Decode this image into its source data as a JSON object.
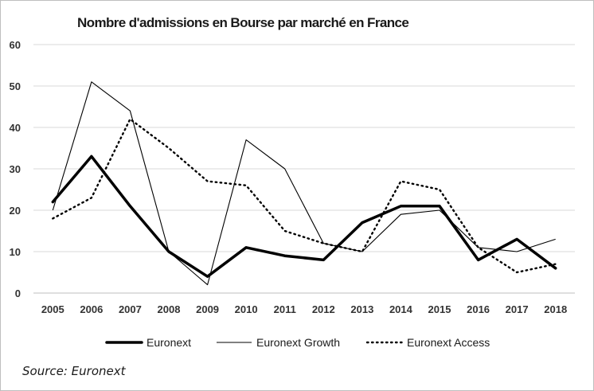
{
  "chart_data": {
    "type": "line",
    "title": "Nombre d'admissions en Bourse par marché en France",
    "xlabel": "",
    "ylabel": "",
    "x": [
      "2005",
      "2006",
      "2007",
      "2008",
      "2009",
      "2010",
      "2011",
      "2012",
      "2013",
      "2014",
      "2015",
      "2016",
      "2017",
      "2018"
    ],
    "ylim": [
      0,
      60
    ],
    "yticks": [
      0,
      10,
      20,
      30,
      40,
      50,
      60
    ],
    "grid": true,
    "legend_position": "bottom",
    "series": [
      {
        "name": "Euronext",
        "style": "thick-solid",
        "color": "#000000",
        "values": [
          22,
          33,
          21,
          10,
          4,
          11,
          9,
          8,
          17,
          21,
          21,
          8,
          13,
          6
        ]
      },
      {
        "name": "Euronext Growth",
        "style": "thin-solid",
        "color": "#000000",
        "values": [
          20,
          51,
          44,
          10,
          2,
          37,
          30,
          12,
          10,
          19,
          20,
          11,
          10,
          13
        ]
      },
      {
        "name": "Euronext Access",
        "style": "dotted",
        "color": "#000000",
        "values": [
          18,
          23,
          42,
          35,
          27,
          26,
          15,
          12,
          10,
          27,
          25,
          11,
          5,
          7
        ]
      }
    ]
  },
  "source_text": "Source: Euronext"
}
